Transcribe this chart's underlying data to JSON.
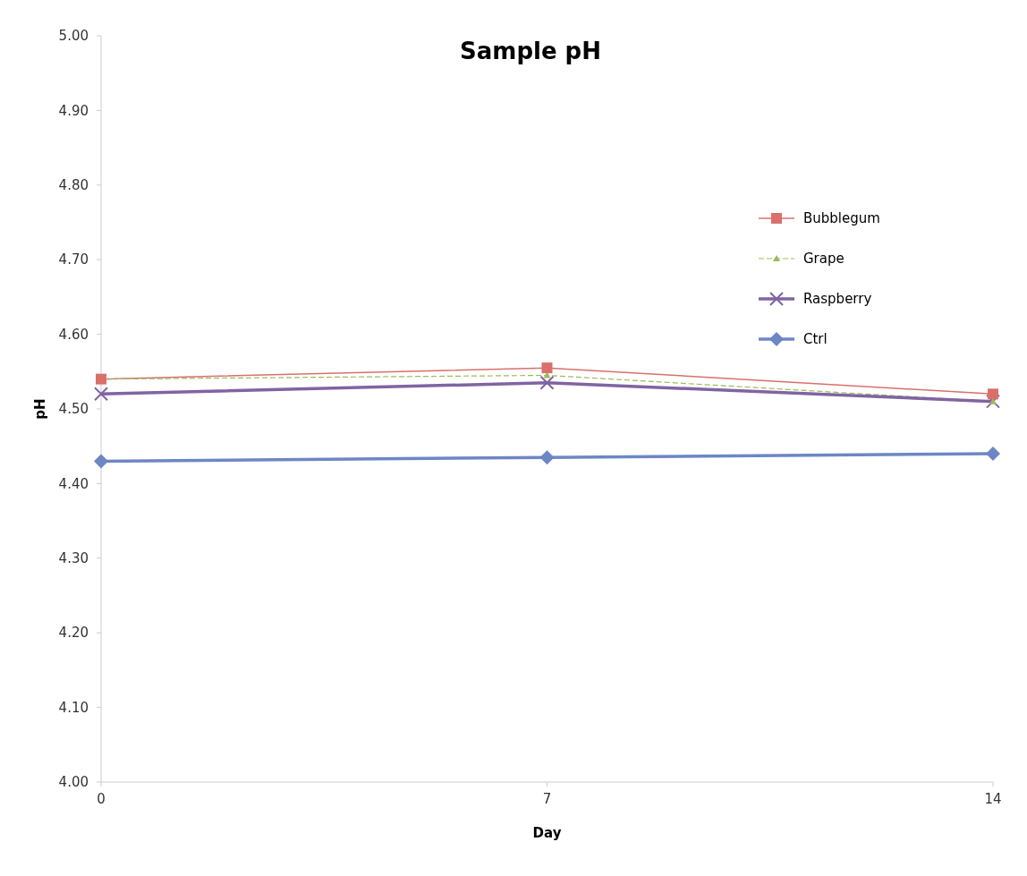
{
  "chart_data": {
    "type": "line",
    "title": "Sample pH",
    "xlabel": "Day",
    "ylabel": "pH",
    "x": [
      0,
      7,
      14
    ],
    "xlim": [
      0,
      14
    ],
    "xticks": [
      0,
      7,
      14
    ],
    "ylim": [
      4,
      5
    ],
    "yticks": [
      {
        "value": 4,
        "label": "4.00"
      },
      {
        "value": 4.1,
        "label": "4.10"
      },
      {
        "value": 4.2,
        "label": "4.20"
      },
      {
        "value": 4.3,
        "label": "4.30"
      },
      {
        "value": 4.4,
        "label": "4.40"
      },
      {
        "value": 4.5,
        "label": "4.50"
      },
      {
        "value": 4.6,
        "label": "4.60"
      },
      {
        "value": 4.7,
        "label": "4.70"
      },
      {
        "value": 4.8,
        "label": "4.80"
      },
      {
        "value": 4.9,
        "label": "4.90"
      },
      {
        "value": 5,
        "label": "5.00"
      }
    ],
    "legend": "right",
    "series": [
      {
        "name": "Bubblegum",
        "color": "#d9706c",
        "marker": "square",
        "values": [
          4.54,
          4.555,
          4.52
        ]
      },
      {
        "name": "Grape",
        "color": "#9bbb59",
        "marker": "triangle",
        "line_style": "dashed",
        "values": [
          4.54,
          4.545,
          4.51
        ]
      },
      {
        "name": "Raspberry",
        "color": "#8064a2",
        "marker": "cross",
        "values": [
          4.52,
          4.535,
          4.51
        ]
      },
      {
        "name": "Ctrl",
        "color": "#6d87c5",
        "marker": "diamond",
        "values": [
          4.43,
          4.435,
          4.44
        ]
      }
    ]
  }
}
